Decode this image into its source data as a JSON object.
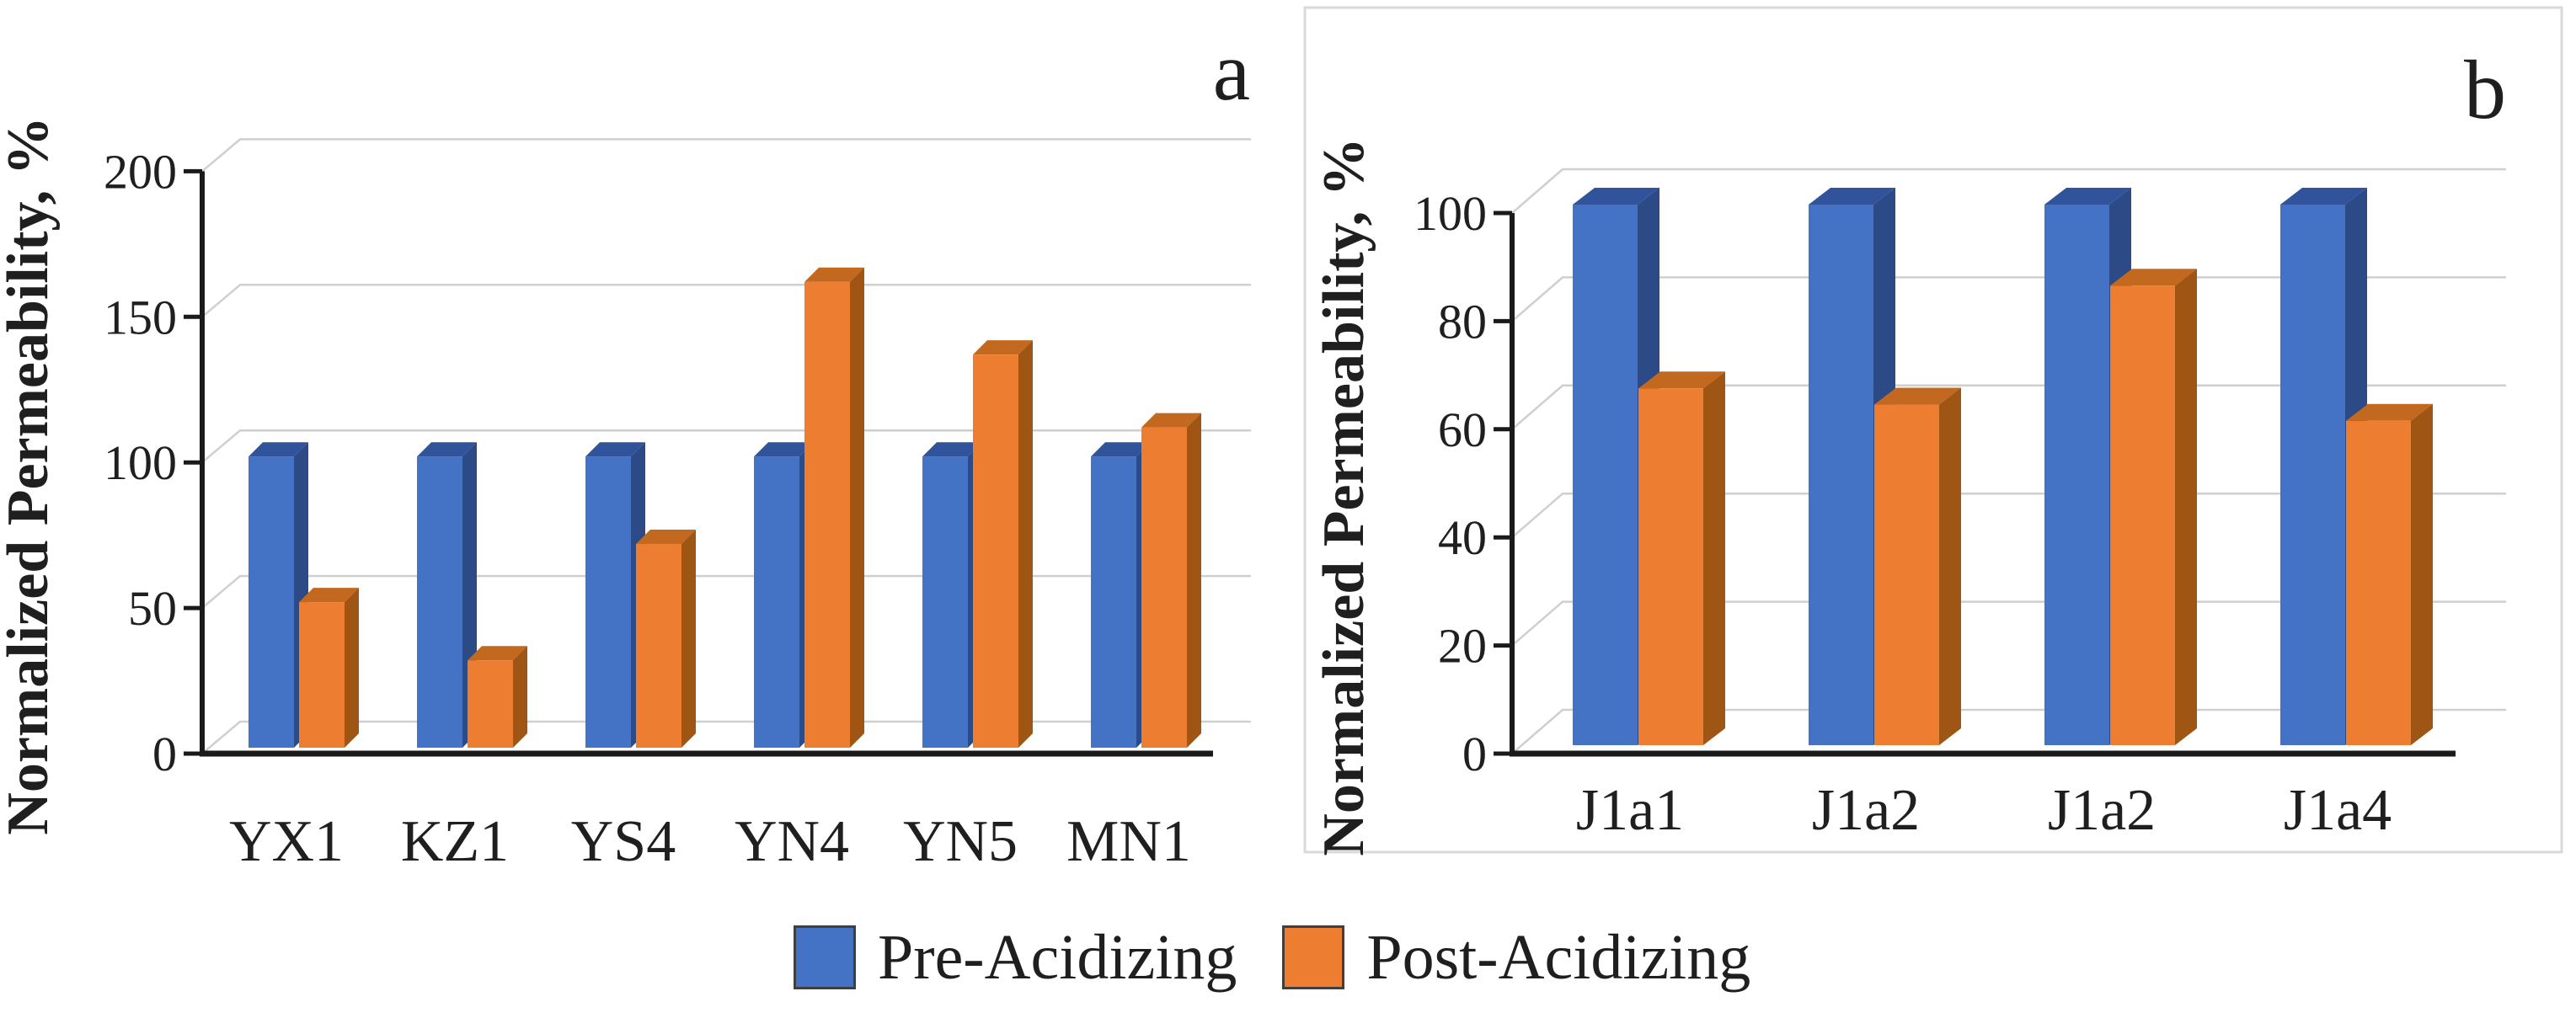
{
  "legend": {
    "items": [
      {
        "label": "Pre-Acidizing",
        "color": "#4472C4"
      },
      {
        "label": "Post-Acidizing",
        "color": "#ED7D31"
      }
    ]
  },
  "chart_data": [
    {
      "type": "bar",
      "style": "3d-column",
      "panel_label": "a",
      "title": "",
      "xlabel": "",
      "ylabel": "Normalized Permeability, %",
      "categories": [
        "YX1",
        "KZ1",
        "YS4",
        "YN4",
        "YN5",
        "MN1"
      ],
      "series": [
        {
          "name": "Pre-Acidizing",
          "color": "#4472C4",
          "values": [
            100,
            100,
            100,
            100,
            100,
            100
          ]
        },
        {
          "name": "Post-Acidizing",
          "color": "#ED7D31",
          "values": [
            50,
            30,
            70,
            160,
            135,
            110
          ]
        }
      ],
      "ylim": [
        0,
        200
      ],
      "ytick_step": 50,
      "grid": true,
      "legend_position": "bottom-shared"
    },
    {
      "type": "bar",
      "style": "3d-column",
      "panel_label": "b",
      "title": "",
      "xlabel": "",
      "ylabel": "Normalized Permeability, %",
      "categories": [
        "J1a1",
        "J1a2",
        "J1a2",
        "J1a4"
      ],
      "series": [
        {
          "name": "Pre-Acidizing",
          "color": "#4472C4",
          "values": [
            100,
            100,
            100,
            100
          ]
        },
        {
          "name": "Post-Acidizing",
          "color": "#ED7D31",
          "values": [
            66,
            63,
            85,
            60
          ]
        }
      ],
      "ylim": [
        0,
        100
      ],
      "ytick_step": 20,
      "grid": true,
      "legend_position": "bottom-shared"
    }
  ],
  "colors": {
    "blue_front": "#4472C4",
    "blue_top": "#30539B",
    "blue_side": "#2C4A85",
    "orange_front": "#ED7D31",
    "orange_top": "#C2681F",
    "orange_side": "#9F5614",
    "gridline": "#CFCFCF",
    "axis": "#1A1A1A",
    "panel_border": "#D9D9D9",
    "text": "#1F1F1F"
  }
}
